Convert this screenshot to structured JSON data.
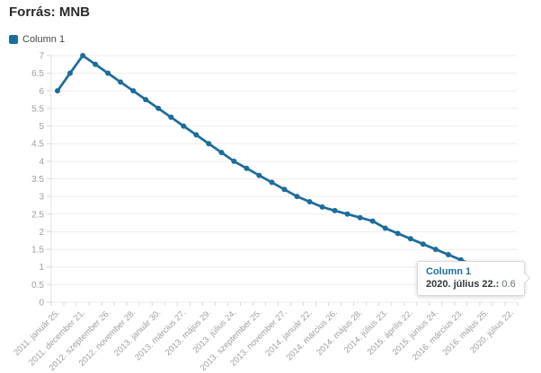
{
  "title": "Forrás: MNB",
  "legend": {
    "items": [
      {
        "label": "Column 1"
      }
    ]
  },
  "tooltip": {
    "series": "Column 1",
    "label": "2020. július 22.:",
    "value": "0.6"
  },
  "chart_data": {
    "type": "line",
    "title": "Forrás: MNB",
    "series_name": "Column 1",
    "categories": [
      "2011. január 25.",
      "",
      "2011. december 21.",
      "",
      "2012. szeptember 26.",
      "",
      "2012. november 28.",
      "",
      "2013. január 30.",
      "",
      "2013. március 27.",
      "",
      "2013. május 29.",
      "",
      "2013. július 24.",
      "",
      "2013. szeptember 25.",
      "",
      "2013. november 27.",
      "",
      "2014. január 22.",
      "",
      "2014. március 26.",
      "",
      "2014. május 28.",
      "",
      "2014. július 23.",
      "",
      "2015. április 22.",
      "",
      "2015. június 24.",
      "",
      "2016. március 23.",
      "",
      "2016. május 25.",
      "",
      "2020. július 22."
    ],
    "values": [
      6,
      6.5,
      7,
      6.75,
      6.5,
      6.25,
      6,
      5.75,
      5.5,
      5.25,
      5,
      4.75,
      4.5,
      4.25,
      4,
      3.8,
      3.6,
      3.4,
      3.2,
      3,
      2.85,
      2.7,
      2.6,
      2.5,
      2.4,
      2.3,
      2.1,
      1.95,
      1.8,
      1.65,
      1.5,
      1.35,
      1.2,
      1.05,
      0.9,
      0.75,
      0.6
    ],
    "yticks": [
      "0",
      "0.5",
      "1",
      "1.5",
      "2",
      "2.5",
      "3",
      "3.5",
      "4",
      "4.5",
      "5",
      "5.5",
      "6",
      "6.5",
      "7"
    ],
    "ylim": [
      0,
      7
    ],
    "grid": true,
    "legend_position": "top-left",
    "tooltip_point_index": 36,
    "colors": {
      "series": "#1c6d9c",
      "grid": "#ededed",
      "axis_line": "#e0e0e0",
      "tick": "#d6d6d6",
      "axis_text": "#9e9e9e"
    }
  }
}
